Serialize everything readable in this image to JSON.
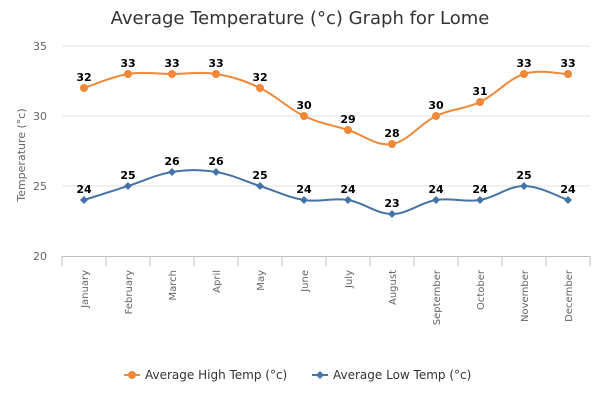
{
  "chart_data": {
    "type": "line",
    "title": "Average Temperature (°c) Graph for Lome",
    "ylabel": "Temperature (°c)",
    "xlabel": "",
    "ylim": [
      20,
      35
    ],
    "yticks": [
      20,
      25,
      30,
      35
    ],
    "grid": true,
    "legend_position": "bottom",
    "categories": [
      "January",
      "February",
      "March",
      "April",
      "May",
      "June",
      "July",
      "August",
      "September",
      "October",
      "November",
      "December"
    ],
    "series": [
      {
        "name": "Average High Temp (°c)",
        "color": "#f0883a",
        "marker": "circle",
        "values": [
          32,
          33,
          33,
          33,
          32,
          30,
          29,
          28,
          30,
          31,
          33,
          33
        ]
      },
      {
        "name": "Average Low Temp (°c)",
        "color": "#4572a7",
        "marker": "diamond",
        "values": [
          24,
          25,
          26,
          26,
          25,
          24,
          24,
          23,
          24,
          24,
          25,
          24
        ]
      }
    ]
  }
}
